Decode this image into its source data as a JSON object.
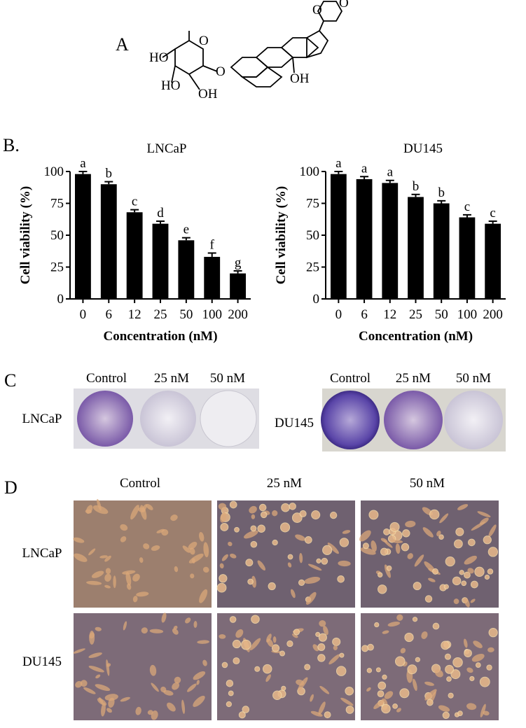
{
  "panels": {
    "A": "A",
    "B": "B.",
    "C": "C",
    "D": "D"
  },
  "compound": {
    "atoms": [
      "O",
      "O",
      "HO",
      "HO",
      "OH",
      "O",
      "OH",
      "O"
    ]
  },
  "chart_data": [
    {
      "type": "bar",
      "title": "LNCaP",
      "categories": [
        "0",
        "6",
        "12",
        "25",
        "50",
        "100",
        "200"
      ],
      "values": [
        98,
        90,
        68,
        59,
        46,
        33,
        20
      ],
      "errors": [
        2,
        2,
        2,
        2,
        2,
        3,
        2
      ],
      "annotations": [
        "a",
        "b",
        "c",
        "d",
        "e",
        "f",
        "g"
      ],
      "color": "#000000",
      "ylim": [
        0,
        100
      ],
      "yticks": [
        0,
        25,
        50,
        75,
        100
      ],
      "xlabel": "Concentration (nM)",
      "ylabel": "Cell viability (%)"
    },
    {
      "type": "bar",
      "title": "DU145",
      "categories": [
        "0",
        "6",
        "12",
        "25",
        "50",
        "100",
        "200"
      ],
      "values": [
        98,
        94,
        91,
        80,
        75,
        64,
        59
      ],
      "errors": [
        2,
        2,
        2,
        2,
        2,
        2,
        2
      ],
      "annotations": [
        "a",
        "a",
        "a",
        "b",
        "b",
        "c",
        "c"
      ],
      "color": "#000000",
      "ylim": [
        0,
        100
      ],
      "yticks": [
        0,
        25,
        50,
        75,
        100
      ],
      "xlabel": "Concentration (nM)",
      "ylabel": "Cell viability (%)"
    }
  ],
  "colony": {
    "left": {
      "row": "LNCaP",
      "columns": [
        "Control",
        "25 nM",
        "50 nM"
      ]
    },
    "right": {
      "row": "DU145",
      "columns": [
        "Control",
        "25 nM",
        "50 nM"
      ]
    }
  },
  "morphology": {
    "columns": [
      "Control",
      "25 nM",
      "50 nM"
    ],
    "rows": [
      "LNCaP",
      "DU145"
    ]
  }
}
